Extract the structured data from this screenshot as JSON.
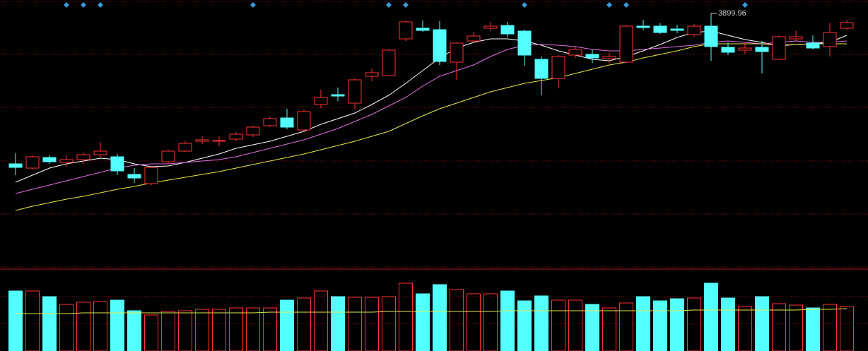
{
  "chart_data": {
    "type": "candlestick",
    "up_color": "#ff3232",
    "down_color": "#54ffff",
    "ylim": [
      3542,
      3922
    ],
    "open": [
      3690,
      3684,
      3699,
      3692,
      3696,
      3703,
      3700,
      3675,
      3662,
      3693,
      3708,
      3722,
      3722,
      3725,
      3731,
      3744,
      3755,
      3738,
      3774,
      3788,
      3776,
      3814,
      3815,
      3867,
      3882,
      3880,
      3834,
      3864,
      3882,
      3886,
      3878,
      3838,
      3811,
      3844,
      3845,
      3839,
      3834,
      3885,
      3885,
      3881,
      3873,
      3885,
      3855,
      3851,
      3855,
      3838,
      3867,
      3861,
      3856,
      3882
    ],
    "high": [
      3705,
      3702,
      3702,
      3702,
      3706,
      3721,
      3704,
      3684,
      3686,
      3710,
      3722,
      3729,
      3729,
      3735,
      3744,
      3757,
      3768,
      3767,
      3795,
      3798,
      3811,
      3825,
      3853,
      3893,
      3893,
      3892,
      3862,
      3877,
      3891,
      3891,
      3880,
      3842,
      3844,
      3857,
      3852,
      3847,
      3887,
      3894,
      3889,
      3887,
      3888,
      3899.96,
      3862,
      3862,
      3864,
      3872,
      3878,
      3872,
      3889,
      3894
    ],
    "low": [
      3674,
      3682,
      3690,
      3686,
      3690,
      3698,
      3674,
      3663,
      3660,
      3690,
      3707,
      3718,
      3715,
      3722,
      3728,
      3742,
      3739,
      3735,
      3769,
      3779,
      3767,
      3807,
      3814,
      3864,
      3877,
      3830,
      3809,
      3862,
      3878,
      3869,
      3829,
      3787,
      3797,
      3840,
      3833,
      3832,
      3833,
      3880,
      3874,
      3875,
      3870,
      3836,
      3844,
      3846,
      3818,
      3837,
      3864,
      3852,
      3842,
      3880
    ],
    "close": [
      3685,
      3700,
      3693,
      3696,
      3703,
      3708,
      3680,
      3670,
      3685,
      3708,
      3719,
      3724,
      3723,
      3732,
      3742,
      3754,
      3742,
      3764,
      3784,
      3786,
      3809,
      3819,
      3851,
      3891,
      3879,
      3835,
      3861,
      3871,
      3885,
      3874,
      3844,
      3811,
      3842,
      3852,
      3840,
      3842,
      3885,
      3883,
      3876,
      3879,
      3885,
      3856,
      3848,
      3854,
      3849,
      3870,
      3870,
      3854,
      3876,
      3890
    ],
    "annotated_index": 41,
    "series": [
      {
        "color": "#ffffff",
        "values": [
          3664,
          3674,
          3684,
          3690,
          3694,
          3698,
          3696,
          3690,
          3686,
          3687,
          3692,
          3698,
          3704,
          3712,
          3717,
          3722,
          3729,
          3736,
          3746,
          3754,
          3762,
          3774,
          3787,
          3804,
          3822,
          3840,
          3854,
          3862,
          3867,
          3867,
          3864,
          3858,
          3850,
          3844,
          3838,
          3836,
          3842,
          3850,
          3859,
          3869,
          3876,
          3878,
          3872,
          3866,
          3862,
          3857,
          3859,
          3860,
          3862,
          3872
        ]
      },
      {
        "color": "#e070e0",
        "values": [
          3648,
          3654,
          3660,
          3666,
          3672,
          3678,
          3684,
          3688,
          3690,
          3690,
          3692,
          3694,
          3696,
          3700,
          3706,
          3712,
          3718,
          3724,
          3732,
          3740,
          3750,
          3760,
          3772,
          3784,
          3800,
          3814,
          3822,
          3830,
          3842,
          3852,
          3858,
          3859,
          3858,
          3856,
          3852,
          3850,
          3850,
          3852,
          3854,
          3856,
          3858,
          3862,
          3864,
          3862,
          3860,
          3862,
          3864,
          3862,
          3862,
          3864
        ]
      },
      {
        "color": "#e8e84a",
        "values": [
          3624,
          3630,
          3635,
          3640,
          3644,
          3649,
          3654,
          3658,
          3663,
          3667,
          3671,
          3675,
          3679,
          3684,
          3689,
          3694,
          3699,
          3704,
          3710,
          3716,
          3722,
          3729,
          3736,
          3747,
          3758,
          3768,
          3776,
          3784,
          3792,
          3798,
          3804,
          3808,
          3812,
          3818,
          3824,
          3830,
          3834,
          3840,
          3845,
          3850,
          3856,
          3860,
          3860,
          3860,
          3860,
          3858,
          3859,
          3860,
          3860,
          3860
        ]
      }
    ],
    "vlim": [
      0,
      113
    ],
    "volume": [
      85,
      85,
      77,
      66,
      69,
      70,
      72,
      57,
      51,
      56,
      57,
      59,
      59,
      61,
      61,
      61,
      72,
      75,
      85,
      77,
      76,
      76,
      77,
      96,
      81,
      94,
      87,
      81,
      81,
      85,
      71,
      78,
      72,
      72,
      66,
      61,
      68,
      77,
      71,
      74,
      75,
      96,
      75,
      63,
      77,
      67,
      65,
      61,
      66,
      63
    ],
    "volume_ma": {
      "color": "#e8e84a",
      "values": [
        53,
        53,
        53,
        53,
        54,
        54,
        54,
        54,
        54,
        54,
        54,
        54,
        54,
        54,
        54,
        55,
        55,
        55,
        55,
        55,
        55,
        55,
        56,
        56,
        56,
        56,
        56,
        56,
        56,
        57,
        57,
        57,
        57,
        57,
        57,
        57,
        57,
        57,
        57,
        57,
        58,
        58,
        58,
        58,
        58,
        58,
        58,
        59,
        59,
        60
      ]
    },
    "markers": [
      3,
      4,
      5,
      14,
      22,
      23,
      30,
      35,
      36,
      43
    ],
    "marker_color": "#3a9ad9"
  }
}
